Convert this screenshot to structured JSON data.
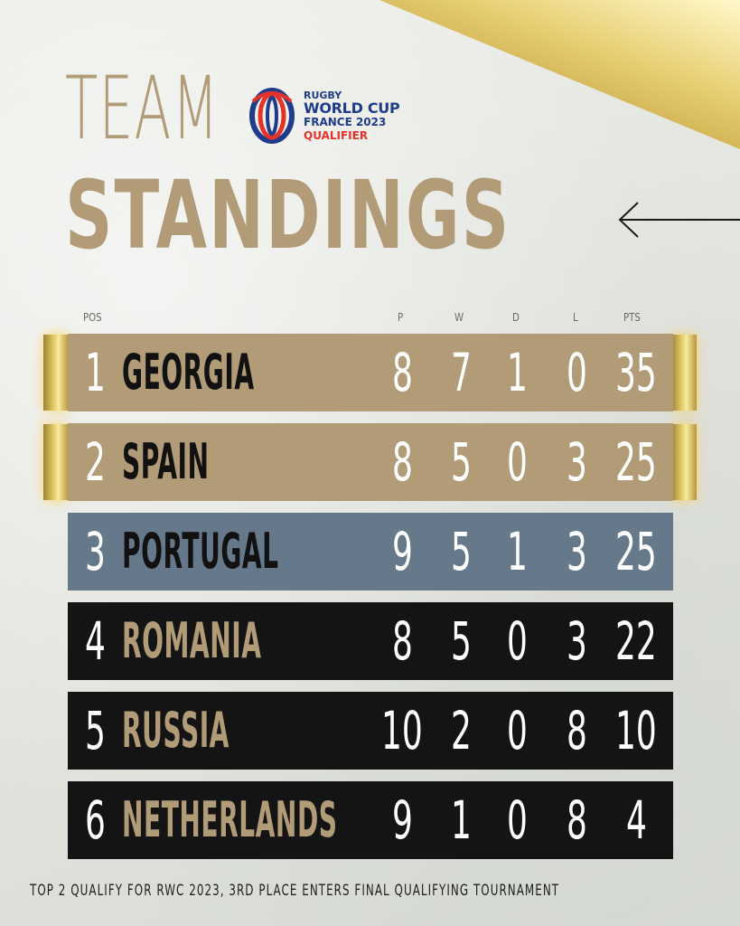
{
  "title": {
    "line1": "TEAM",
    "line2": "STANDINGS"
  },
  "logo": {
    "line1": "RUGBY",
    "line2": "WORLD CUP",
    "line3": "FRANCE 2023",
    "line4": "QUALIFIER"
  },
  "headers": {
    "pos": "POS",
    "p": "P",
    "w": "W",
    "d": "D",
    "l": "L",
    "pts": "PTS"
  },
  "rows": [
    {
      "pos": "1",
      "team": "GEORGIA",
      "p": "8",
      "w": "7",
      "d": "1",
      "l": "0",
      "pts": "35"
    },
    {
      "pos": "2",
      "team": "SPAIN",
      "p": "8",
      "w": "5",
      "d": "0",
      "l": "3",
      "pts": "25"
    },
    {
      "pos": "3",
      "team": "PORTUGAL",
      "p": "9",
      "w": "5",
      "d": "1",
      "l": "3",
      "pts": "25"
    },
    {
      "pos": "4",
      "team": "ROMANIA",
      "p": "8",
      "w": "5",
      "d": "0",
      "l": "3",
      "pts": "22"
    },
    {
      "pos": "5",
      "team": "RUSSIA",
      "p": "10",
      "w": "2",
      "d": "0",
      "l": "8",
      "pts": "10"
    },
    {
      "pos": "6",
      "team": "NETHERLANDS",
      "p": "9",
      "w": "1",
      "d": "0",
      "l": "8",
      "pts": "4"
    }
  ],
  "footer": "TOP 2 QUALIFY FOR RWC 2023, 3RD PLACE ENTERS FINAL QUALIFYING TOURNAMENT",
  "colors": {
    "gold": "#b29c78",
    "silver": "#65798a",
    "dark": "#141414",
    "background": "#e6e7e1"
  },
  "icons": {
    "arrow": "arrow-left-icon",
    "logo": "rugby-world-cup-logo-icon"
  }
}
